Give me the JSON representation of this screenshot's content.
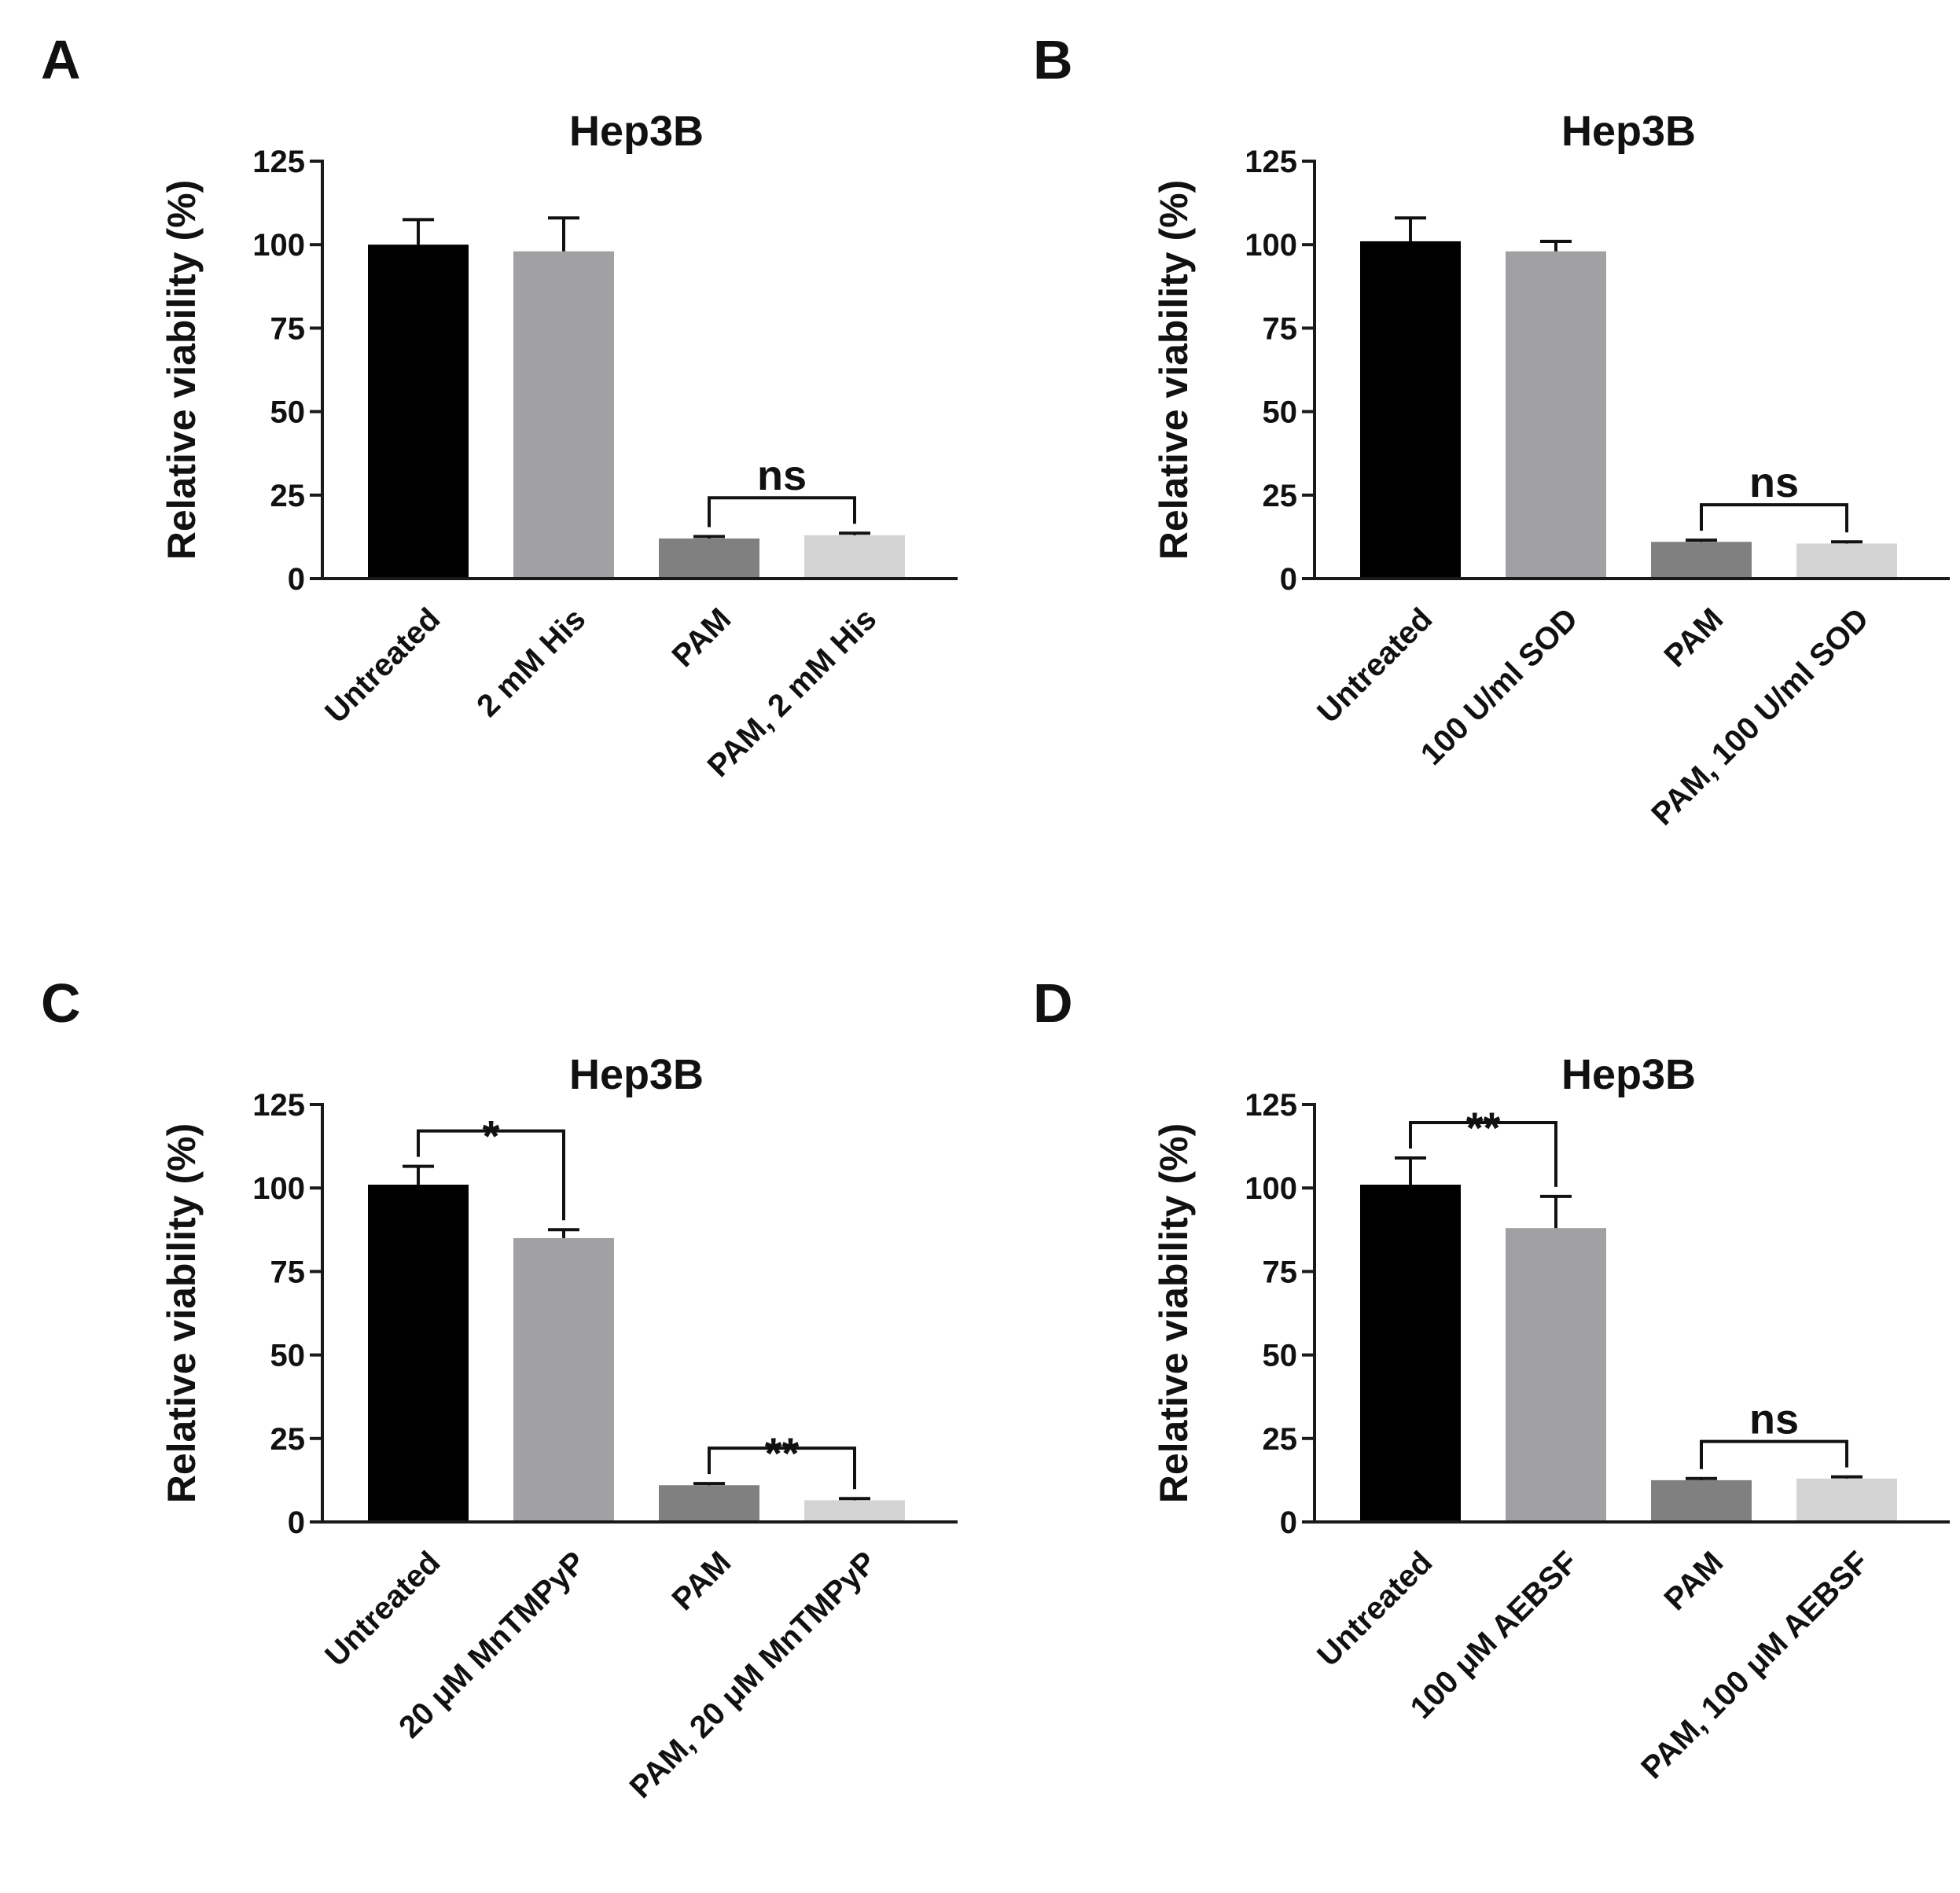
{
  "figure": {
    "panels_order": [
      "A",
      "B",
      "C",
      "D"
    ]
  },
  "colors": {
    "untreated": "#000000",
    "treatment": "#a1a1a4",
    "pam": "#808080",
    "pam_treatment": "#d4d4d4",
    "axis": "#1a1a1a",
    "text": "#111111"
  },
  "chart_data": [
    {
      "panel_label": "A",
      "type": "bar",
      "title": "Hep3B",
      "xlabel": "",
      "ylabel": "Relative viability (%)",
      "ylim": [
        0,
        125
      ],
      "yticks": [
        0,
        25,
        50,
        75,
        100,
        125
      ],
      "grid": false,
      "categories": [
        "Untreated",
        "2 mM His",
        "PAM",
        "PAM, 2 mM His"
      ],
      "values": [
        100,
        98,
        12,
        13
      ],
      "errors": [
        7.5,
        10,
        0.6,
        0.6
      ],
      "colors": [
        "#000000",
        "#a1a1a4",
        "#808080",
        "#d4d4d4"
      ],
      "annotations": [
        {
          "from": 2,
          "to": 3,
          "text": "ns"
        }
      ]
    },
    {
      "panel_label": "B",
      "type": "bar",
      "title": "Hep3B",
      "xlabel": "",
      "ylabel": "Relative viability (%)",
      "ylim": [
        0,
        125
      ],
      "yticks": [
        0,
        25,
        50,
        75,
        100,
        125
      ],
      "grid": false,
      "categories": [
        "Untreated",
        "100 U/ml SOD",
        "PAM",
        "PAM, 100 U/ml SOD"
      ],
      "values": [
        101,
        98,
        11,
        10.5
      ],
      "errors": [
        7,
        3,
        0.5,
        0.5
      ],
      "colors": [
        "#000000",
        "#a1a1a4",
        "#808080",
        "#d4d4d4"
      ],
      "annotations": [
        {
          "from": 2,
          "to": 3,
          "text": "ns"
        }
      ]
    },
    {
      "panel_label": "C",
      "type": "bar",
      "title": "Hep3B",
      "xlabel": "",
      "ylabel": "Relative viability (%)",
      "ylim": [
        0,
        125
      ],
      "yticks": [
        0,
        25,
        50,
        75,
        100,
        125
      ],
      "grid": false,
      "categories": [
        "Untreated",
        "20 μM MnTMPyP",
        "PAM",
        "PAM, 20 μM MnTMPyP"
      ],
      "values": [
        101,
        85,
        11,
        6.5
      ],
      "errors": [
        5.5,
        2.5,
        0.5,
        0.5
      ],
      "colors": [
        "#000000",
        "#a1a1a4",
        "#808080",
        "#d4d4d4"
      ],
      "annotations": [
        {
          "from": 0,
          "to": 1,
          "text": "*"
        },
        {
          "from": 2,
          "to": 3,
          "text": "**"
        }
      ]
    },
    {
      "panel_label": "D",
      "type": "bar",
      "title": "Hep3B",
      "xlabel": "",
      "ylabel": "Relative viability (%)",
      "ylim": [
        0,
        125
      ],
      "yticks": [
        0,
        25,
        50,
        75,
        100,
        125
      ],
      "grid": false,
      "categories": [
        "Untreated",
        "100 μM AEBSF",
        "PAM",
        "PAM, 100 μM AEBSF"
      ],
      "values": [
        101,
        88,
        12.5,
        13
      ],
      "errors": [
        8,
        9.5,
        0.5,
        0.5
      ],
      "colors": [
        "#000000",
        "#a1a1a4",
        "#808080",
        "#d4d4d4"
      ],
      "annotations": [
        {
          "from": 0,
          "to": 1,
          "text": "**"
        },
        {
          "from": 2,
          "to": 3,
          "text": "ns"
        }
      ]
    }
  ]
}
